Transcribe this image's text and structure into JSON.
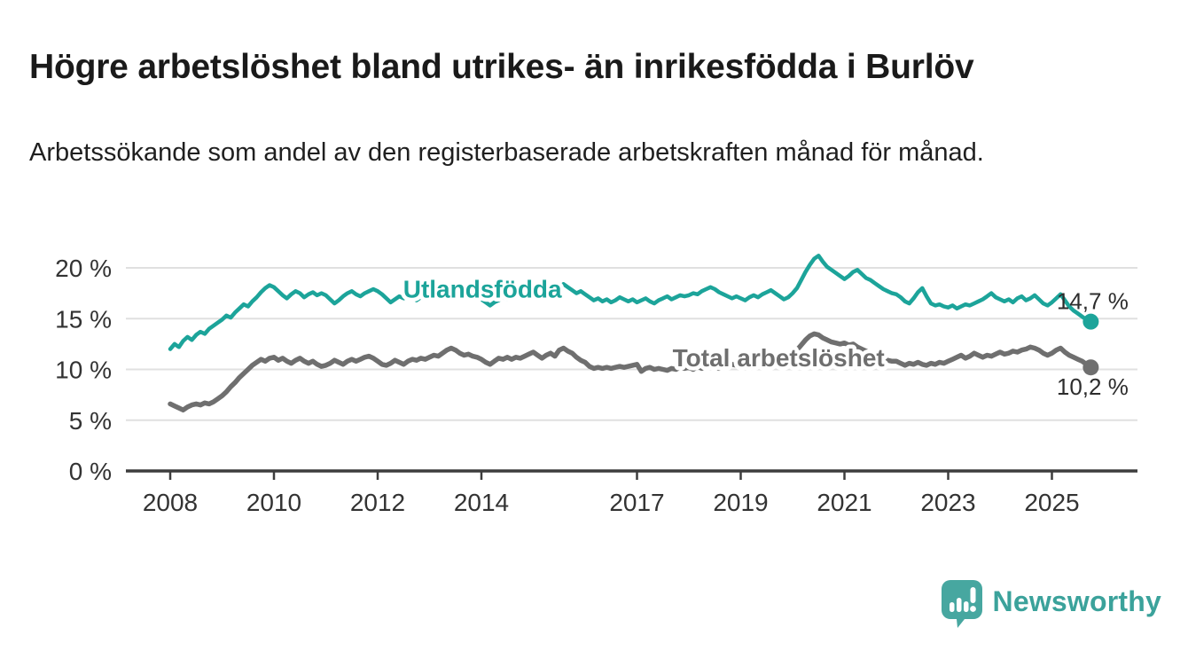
{
  "page": {
    "title": "Högre arbetslöshet bland utrikes- än inrikesfödda i Burlöv",
    "subtitle": "Arbetssökande som andel av den registerbaserade arbetskraften månad för månad."
  },
  "branding": {
    "wordmark": "Newsworthy",
    "icon": "newsworthy-speech-bubble-chart-icon",
    "accent_color": "#3ba29b"
  },
  "chart_data": {
    "type": "line",
    "unit": "%",
    "x_interval": "monthly",
    "x_start_year": 2008,
    "xlim": [
      2007.15,
      2026.6
    ],
    "ylim": [
      0,
      21.5
    ],
    "grid": "horizontal",
    "xticks": [
      {
        "value": 2008,
        "label": "2008"
      },
      {
        "value": 2010,
        "label": "2010"
      },
      {
        "value": 2012,
        "label": "2012"
      },
      {
        "value": 2014,
        "label": "2014"
      },
      {
        "value": 2017,
        "label": "2017"
      },
      {
        "value": 2019,
        "label": "2019"
      },
      {
        "value": 2021,
        "label": "2021"
      },
      {
        "value": 2023,
        "label": "2023"
      },
      {
        "value": 2025,
        "label": "2025"
      }
    ],
    "yticks": [
      {
        "value": 0,
        "label": "0 %"
      },
      {
        "value": 5,
        "label": "5 %"
      },
      {
        "value": 10,
        "label": "10 %"
      },
      {
        "value": 15,
        "label": "15 %"
      },
      {
        "value": 20,
        "label": "20 %"
      }
    ],
    "colors": {
      "gridline": "#e0e0e0",
      "axis": "#3d3d3d",
      "tick_text": "#333333",
      "end_label_text": "#2d2d2d"
    },
    "series": [
      {
        "id": "utlandsfodda",
        "name": "Utlandsfödda",
        "color": "#1ca49a",
        "end_label": "14,7 %",
        "end_value": 14.7,
        "label_anchor": {
          "x_year": 2014.02,
          "y_value": 17.95
        },
        "values": [
          12.0,
          12.5,
          12.2,
          12.8,
          13.2,
          12.9,
          13.4,
          13.7,
          13.5,
          14.0,
          14.3,
          14.6,
          14.9,
          15.3,
          15.1,
          15.6,
          16.0,
          16.4,
          16.2,
          16.7,
          17.1,
          17.6,
          18.0,
          18.3,
          18.1,
          17.7,
          17.3,
          17.0,
          17.4,
          17.7,
          17.5,
          17.1,
          17.4,
          17.6,
          17.3,
          17.5,
          17.3,
          16.9,
          16.5,
          16.8,
          17.2,
          17.5,
          17.7,
          17.4,
          17.2,
          17.5,
          17.7,
          17.9,
          17.7,
          17.4,
          17.0,
          16.6,
          16.9,
          17.2,
          17.0,
          17.3,
          17.1,
          16.8,
          17.1,
          17.3,
          17.1,
          17.3,
          17.6,
          17.4,
          17.7,
          18.0,
          17.8,
          17.5,
          17.2,
          17.0,
          17.3,
          17.1,
          16.9,
          16.6,
          16.3,
          16.6,
          16.8,
          17.1,
          16.9,
          17.1,
          17.3,
          17.1,
          17.4,
          17.2,
          17.4,
          17.6,
          17.9,
          17.7,
          18.0,
          18.2,
          18.0,
          18.4,
          18.1,
          17.8,
          17.5,
          17.7,
          17.4,
          17.1,
          16.8,
          17.0,
          16.7,
          16.9,
          16.6,
          16.8,
          17.1,
          16.9,
          16.7,
          16.9,
          16.6,
          16.8,
          17.0,
          16.7,
          16.5,
          16.8,
          17.0,
          17.2,
          16.9,
          17.1,
          17.3,
          17.2,
          17.3,
          17.5,
          17.4,
          17.7,
          17.9,
          18.1,
          17.9,
          17.6,
          17.4,
          17.2,
          17.0,
          17.2,
          17.0,
          16.8,
          17.1,
          17.3,
          17.1,
          17.4,
          17.6,
          17.8,
          17.5,
          17.2,
          16.9,
          17.1,
          17.5,
          18.0,
          18.8,
          19.6,
          20.3,
          20.9,
          21.2,
          20.6,
          20.1,
          19.8,
          19.5,
          19.2,
          18.9,
          19.2,
          19.6,
          19.8,
          19.4,
          19.0,
          18.8,
          18.5,
          18.2,
          17.9,
          17.7,
          17.5,
          17.4,
          17.1,
          16.7,
          16.5,
          17.0,
          17.6,
          18.0,
          17.2,
          16.5,
          16.3,
          16.4,
          16.2,
          16.1,
          16.3,
          16.0,
          16.2,
          16.4,
          16.3,
          16.5,
          16.7,
          16.9,
          17.2,
          17.5,
          17.1,
          16.9,
          16.7,
          16.9,
          16.6,
          17.0,
          17.2,
          16.8,
          17.0,
          17.3,
          16.9,
          16.5,
          16.3,
          16.6,
          17.0,
          17.4,
          16.8,
          16.2,
          15.8,
          15.5,
          15.2,
          14.9,
          14.7
        ]
      },
      {
        "id": "total",
        "name": "Total arbetslöshet",
        "color": "#6f6f6f",
        "end_label": "10,2 %",
        "end_value": 10.2,
        "label_anchor": {
          "x_year": 2019.73,
          "y_value": 11.18
        },
        "values": [
          6.6,
          6.4,
          6.2,
          6.0,
          6.3,
          6.5,
          6.6,
          6.5,
          6.7,
          6.6,
          6.8,
          7.1,
          7.4,
          7.8,
          8.3,
          8.7,
          9.2,
          9.6,
          10.0,
          10.4,
          10.7,
          11.0,
          10.8,
          11.1,
          11.2,
          10.9,
          11.1,
          10.8,
          10.6,
          10.9,
          11.1,
          10.8,
          10.6,
          10.8,
          10.5,
          10.3,
          10.4,
          10.6,
          10.9,
          10.7,
          10.5,
          10.8,
          11.0,
          10.8,
          11.0,
          11.2,
          11.3,
          11.1,
          10.8,
          10.5,
          10.4,
          10.6,
          10.9,
          10.7,
          10.5,
          10.8,
          11.0,
          10.9,
          11.1,
          11.0,
          11.2,
          11.4,
          11.3,
          11.6,
          11.9,
          12.1,
          11.9,
          11.6,
          11.4,
          11.5,
          11.3,
          11.2,
          11.0,
          10.7,
          10.5,
          10.8,
          11.1,
          11.0,
          11.2,
          11.0,
          11.2,
          11.1,
          11.3,
          11.5,
          11.7,
          11.4,
          11.1,
          11.4,
          11.6,
          11.3,
          11.9,
          12.1,
          11.8,
          11.6,
          11.2,
          10.9,
          10.7,
          10.3,
          10.1,
          10.2,
          10.1,
          10.2,
          10.1,
          10.2,
          10.3,
          10.2,
          10.3,
          10.4,
          10.5,
          9.8,
          10.1,
          10.2,
          10.0,
          10.1,
          10.0,
          9.9,
          10.1,
          10.0,
          10.2,
          10.1,
          10.2,
          10.0,
          10.3,
          10.1,
          10.4,
          10.2,
          10.3,
          10.1,
          10.4,
          10.3,
          10.5,
          10.4,
          10.4,
          10.6,
          10.5,
          10.7,
          10.6,
          10.8,
          10.7,
          10.9,
          10.8,
          11.0,
          10.9,
          11.1,
          11.5,
          11.9,
          12.4,
          12.9,
          13.3,
          13.5,
          13.4,
          13.1,
          12.9,
          12.7,
          12.6,
          12.5,
          12.6,
          12.4,
          12.5,
          12.2,
          12.0,
          11.8,
          11.6,
          11.4,
          11.2,
          11.0,
          10.9,
          10.8,
          10.8,
          10.6,
          10.4,
          10.6,
          10.5,
          10.7,
          10.5,
          10.4,
          10.6,
          10.5,
          10.7,
          10.6,
          10.8,
          11.0,
          11.2,
          11.4,
          11.1,
          11.3,
          11.6,
          11.4,
          11.2,
          11.4,
          11.3,
          11.5,
          11.7,
          11.5,
          11.6,
          11.8,
          11.7,
          11.9,
          12.0,
          12.2,
          12.1,
          11.9,
          11.6,
          11.4,
          11.6,
          11.9,
          12.1,
          11.7,
          11.4,
          11.2,
          11.0,
          10.8,
          10.5,
          10.2
        ]
      }
    ]
  }
}
